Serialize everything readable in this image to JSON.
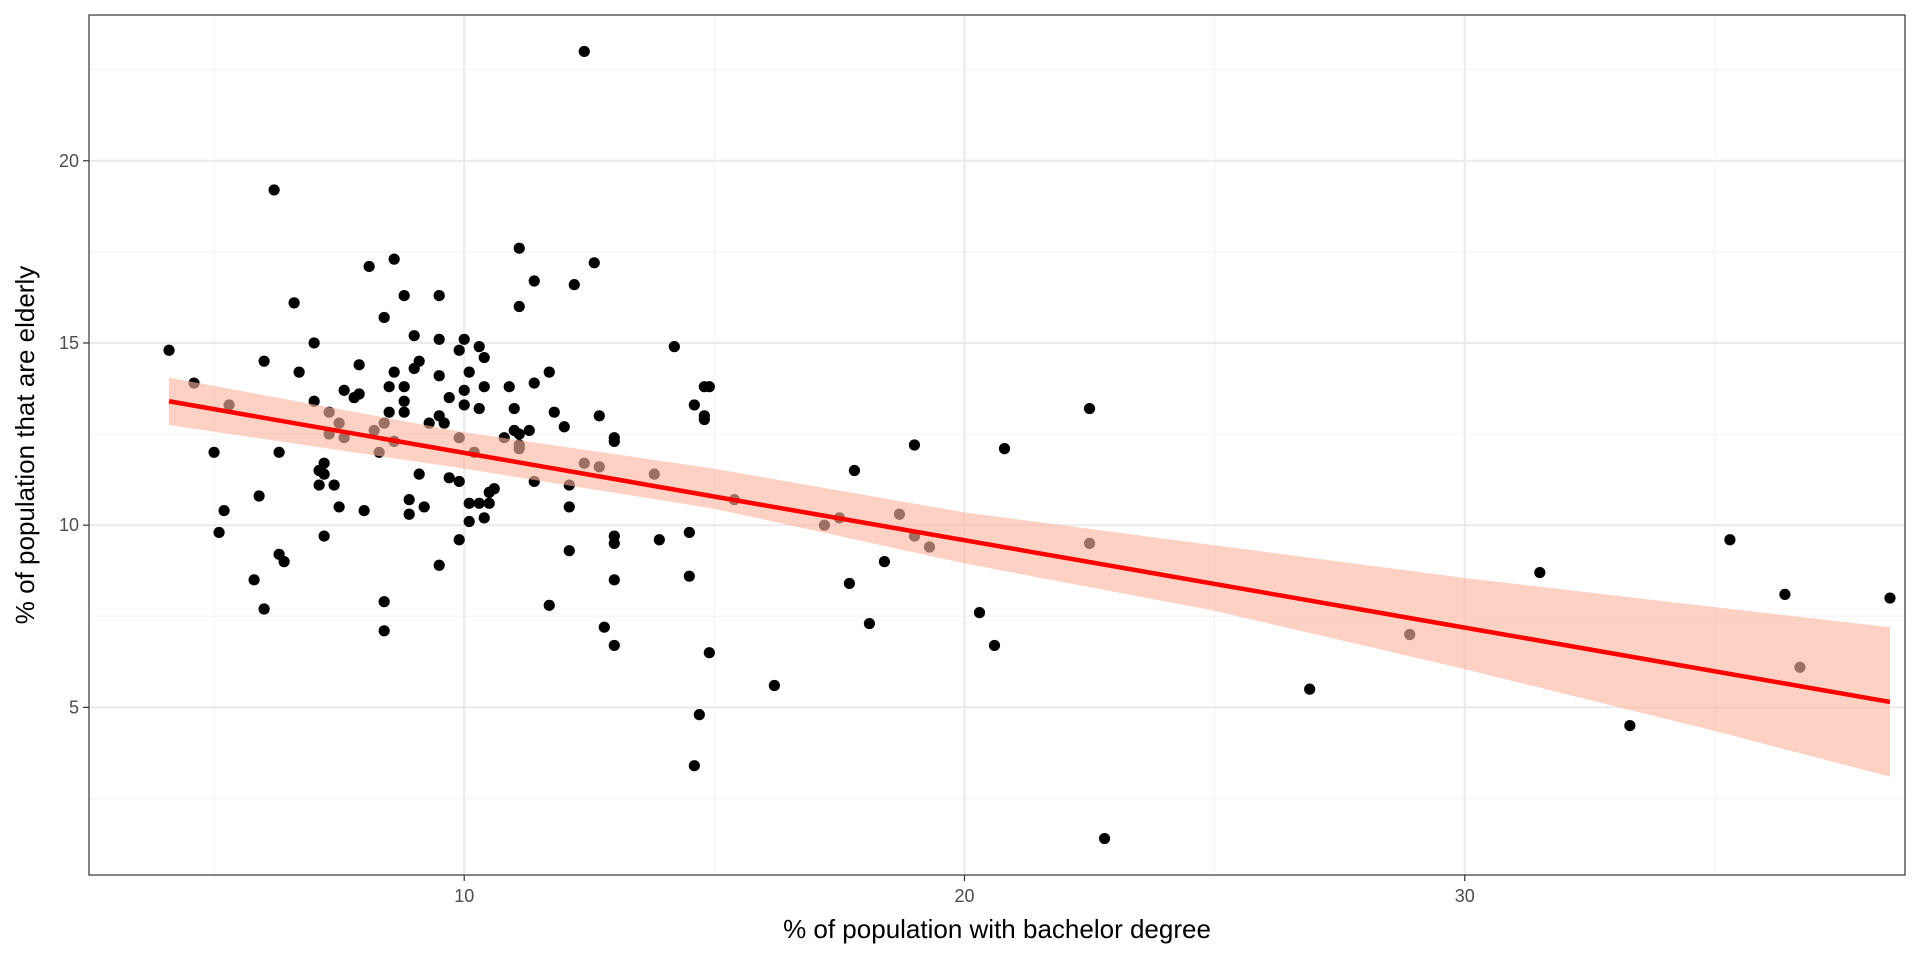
{
  "chart_data": {
    "type": "scatter",
    "title": "",
    "xlabel": "% of population with bachelor degree",
    "ylabel": "% of population that are elderly",
    "xlim": [
      2.5,
      38.8
    ],
    "ylim": [
      0.4,
      24.0
    ],
    "x_ticks": [
      10,
      20,
      30
    ],
    "y_ticks": [
      5,
      10,
      15,
      20
    ],
    "x_minor_ticks": [
      5,
      15,
      25,
      35
    ],
    "y_minor_ticks": [
      2.5,
      7.5,
      12.5,
      17.5,
      22.5
    ],
    "grid": true,
    "legend": "none",
    "colors": {
      "points": "#000000",
      "fit_line": "#ff0000",
      "confidence_band": "#fcb49e",
      "grid_major": "#ebebeb",
      "grid_minor": "#f4f4f4",
      "panel_border": "#333333"
    },
    "points": [
      [
        4.1,
        14.8
      ],
      [
        4.6,
        13.9
      ],
      [
        5.0,
        12.0
      ],
      [
        5.2,
        10.4
      ],
      [
        5.1,
        9.8
      ],
      [
        5.3,
        13.3
      ],
      [
        5.8,
        8.5
      ],
      [
        5.9,
        10.8
      ],
      [
        6.0,
        14.5
      ],
      [
        6.0,
        7.7
      ],
      [
        6.2,
        19.2
      ],
      [
        6.3,
        12.0
      ],
      [
        6.3,
        9.2
      ],
      [
        6.4,
        9.0
      ],
      [
        6.6,
        16.1
      ],
      [
        6.7,
        14.2
      ],
      [
        7.0,
        13.4
      ],
      [
        7.0,
        15.0
      ],
      [
        7.1,
        11.5
      ],
      [
        7.1,
        11.1
      ],
      [
        7.2,
        11.7
      ],
      [
        7.2,
        11.4
      ],
      [
        7.2,
        9.7
      ],
      [
        7.3,
        13.1
      ],
      [
        7.3,
        12.5
      ],
      [
        7.4,
        11.1
      ],
      [
        7.5,
        10.5
      ],
      [
        7.5,
        12.8
      ],
      [
        7.6,
        12.4
      ],
      [
        7.6,
        13.7
      ],
      [
        7.8,
        13.5
      ],
      [
        7.9,
        14.4
      ],
      [
        7.9,
        13.6
      ],
      [
        8.0,
        10.4
      ],
      [
        8.1,
        17.1
      ],
      [
        8.2,
        12.6
      ],
      [
        8.3,
        12.0
      ],
      [
        8.4,
        15.7
      ],
      [
        8.4,
        12.8
      ],
      [
        8.4,
        7.9
      ],
      [
        8.4,
        7.1
      ],
      [
        8.5,
        13.1
      ],
      [
        8.5,
        13.8
      ],
      [
        8.6,
        17.3
      ],
      [
        8.6,
        14.2
      ],
      [
        8.6,
        12.3
      ],
      [
        8.8,
        16.3
      ],
      [
        8.8,
        13.8
      ],
      [
        8.8,
        13.4
      ],
      [
        8.8,
        13.1
      ],
      [
        8.9,
        10.3
      ],
      [
        8.9,
        10.7
      ],
      [
        9.0,
        15.2
      ],
      [
        9.0,
        14.3
      ],
      [
        9.1,
        11.4
      ],
      [
        9.1,
        14.5
      ],
      [
        9.2,
        10.5
      ],
      [
        9.3,
        12.8
      ],
      [
        9.5,
        16.3
      ],
      [
        9.5,
        15.1
      ],
      [
        9.5,
        14.1
      ],
      [
        9.5,
        13.0
      ],
      [
        9.5,
        8.9
      ],
      [
        9.6,
        12.8
      ],
      [
        9.7,
        13.5
      ],
      [
        9.7,
        11.3
      ],
      [
        9.9,
        14.8
      ],
      [
        9.9,
        12.4
      ],
      [
        9.9,
        11.2
      ],
      [
        9.9,
        9.6
      ],
      [
        10.0,
        15.1
      ],
      [
        10.0,
        13.7
      ],
      [
        10.0,
        13.3
      ],
      [
        10.1,
        14.2
      ],
      [
        10.1,
        10.6
      ],
      [
        10.1,
        10.1
      ],
      [
        10.2,
        12.0
      ],
      [
        10.3,
        14.9
      ],
      [
        10.3,
        13.2
      ],
      [
        10.3,
        10.6
      ],
      [
        10.4,
        14.6
      ],
      [
        10.4,
        13.8
      ],
      [
        10.4,
        10.2
      ],
      [
        10.5,
        10.9
      ],
      [
        10.5,
        10.6
      ],
      [
        10.6,
        11.0
      ],
      [
        10.8,
        12.4
      ],
      [
        10.9,
        13.8
      ],
      [
        11.0,
        13.2
      ],
      [
        11.0,
        12.6
      ],
      [
        11.1,
        17.6
      ],
      [
        11.1,
        16.0
      ],
      [
        11.1,
        12.5
      ],
      [
        11.1,
        12.2
      ],
      [
        11.1,
        12.1
      ],
      [
        11.3,
        12.6
      ],
      [
        11.4,
        16.7
      ],
      [
        11.4,
        13.9
      ],
      [
        11.4,
        11.2
      ],
      [
        11.7,
        14.2
      ],
      [
        11.7,
        7.8
      ],
      [
        11.8,
        13.1
      ],
      [
        12.0,
        12.7
      ],
      [
        12.1,
        11.1
      ],
      [
        12.1,
        10.5
      ],
      [
        12.1,
        9.3
      ],
      [
        12.2,
        16.6
      ],
      [
        12.4,
        23.0
      ],
      [
        12.4,
        11.7
      ],
      [
        12.6,
        17.2
      ],
      [
        12.7,
        13.0
      ],
      [
        12.7,
        11.6
      ],
      [
        12.8,
        7.2
      ],
      [
        13.0,
        12.4
      ],
      [
        13.0,
        12.3
      ],
      [
        13.0,
        9.7
      ],
      [
        13.0,
        9.5
      ],
      [
        13.0,
        8.5
      ],
      [
        13.0,
        6.7
      ],
      [
        13.8,
        11.4
      ],
      [
        13.9,
        9.6
      ],
      [
        14.2,
        14.9
      ],
      [
        14.5,
        9.8
      ],
      [
        14.5,
        8.6
      ],
      [
        14.6,
        13.3
      ],
      [
        14.6,
        3.4
      ],
      [
        14.7,
        4.8
      ],
      [
        14.8,
        13.8
      ],
      [
        14.8,
        13.0
      ],
      [
        14.8,
        12.9
      ],
      [
        14.9,
        13.8
      ],
      [
        14.9,
        6.5
      ],
      [
        15.4,
        10.7
      ],
      [
        16.2,
        5.6
      ],
      [
        17.2,
        10.0
      ],
      [
        17.5,
        10.2
      ],
      [
        17.7,
        8.4
      ],
      [
        17.8,
        11.5
      ],
      [
        18.1,
        7.3
      ],
      [
        18.4,
        9.0
      ],
      [
        18.7,
        10.3
      ],
      [
        19.0,
        12.2
      ],
      [
        19.0,
        9.7
      ],
      [
        19.3,
        9.4
      ],
      [
        20.3,
        7.6
      ],
      [
        20.6,
        6.7
      ],
      [
        20.8,
        12.1
      ],
      [
        22.5,
        9.5
      ],
      [
        22.5,
        13.2
      ],
      [
        22.8,
        1.4
      ],
      [
        26.9,
        5.5
      ],
      [
        28.9,
        7.0
      ],
      [
        31.5,
        8.7
      ],
      [
        33.3,
        4.5
      ],
      [
        35.3,
        9.6
      ],
      [
        36.4,
        8.1
      ],
      [
        36.7,
        6.1
      ],
      [
        38.5,
        8.0
      ]
    ],
    "fit_line": {
      "x": [
        4.1,
        38.5
      ],
      "y": [
        13.4,
        5.15
      ]
    },
    "confidence_band": {
      "x": [
        4.1,
        10.0,
        15.0,
        20.0,
        25.0,
        30.0,
        35.0,
        38.5
      ],
      "upper": [
        14.05,
        12.55,
        11.55,
        10.35,
        9.45,
        8.55,
        7.75,
        7.2
      ],
      "lower": [
        12.75,
        11.55,
        10.45,
        8.95,
        7.65,
        6.05,
        4.35,
        3.1
      ]
    }
  }
}
